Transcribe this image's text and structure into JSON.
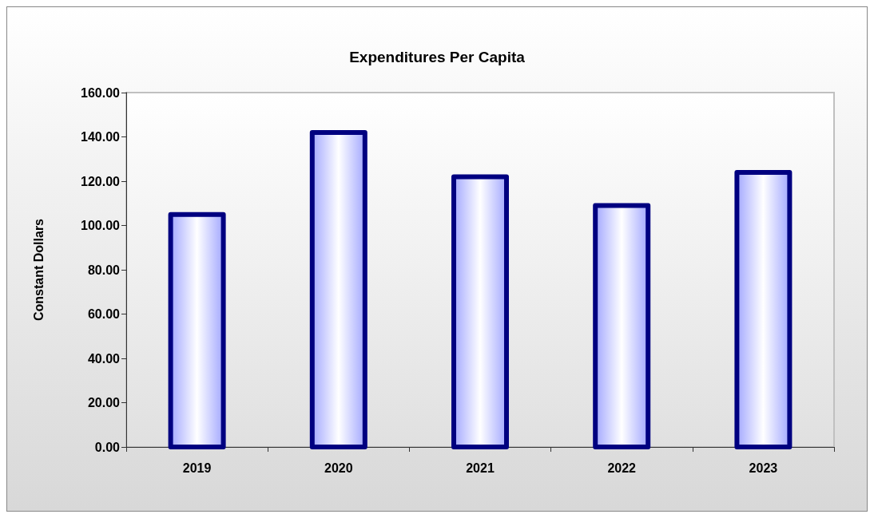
{
  "chart_data": {
    "type": "bar",
    "title": "Expenditures Per Capita",
    "ylabel": "Constant Dollars",
    "categories": [
      "2019",
      "2020",
      "2021",
      "2022",
      "2023"
    ],
    "values": [
      105,
      142,
      122,
      109,
      124
    ],
    "color": "#000080",
    "ylim": [
      0,
      160
    ],
    "yticks": [
      {
        "value": 0,
        "label": "0.00"
      },
      {
        "value": 20,
        "label": "20.00"
      },
      {
        "value": 40,
        "label": "40.00"
      },
      {
        "value": 60,
        "label": "60.00"
      },
      {
        "value": 80,
        "label": "80.00"
      },
      {
        "value": 100,
        "label": "100.00"
      },
      {
        "value": 120,
        "label": "120.00"
      },
      {
        "value": 140,
        "label": "140.00"
      },
      {
        "value": 160,
        "label": "160.00"
      }
    ],
    "grid": false
  }
}
